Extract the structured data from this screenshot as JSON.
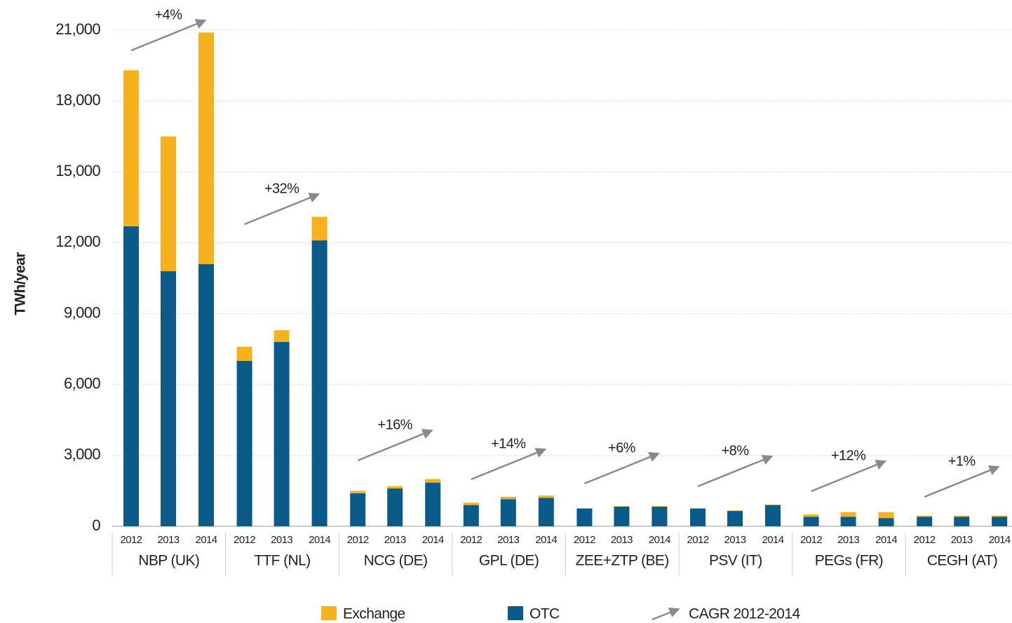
{
  "chart_data": {
    "type": "bar",
    "stacked": true,
    "y_label": "TWh/year",
    "categories": [
      "2012",
      "2013",
      "2014",
      "2012",
      "2013",
      "2014",
      "2012",
      "2013",
      "2014",
      "2012",
      "2013",
      "2014",
      "2012",
      "2013",
      "2014",
      "2012",
      "2013",
      "2014",
      "2012",
      "2013",
      "2014",
      "2012",
      "2013",
      "2014"
    ],
    "groups": [
      {
        "name": "NBP (UK)",
        "cagr": "+4%"
      },
      {
        "name": "TTF (NL)",
        "cagr": "+32%"
      },
      {
        "name": "NCG (DE)",
        "cagr": "+16%"
      },
      {
        "name": "GPL (DE)",
        "cagr": "+14%"
      },
      {
        "name": "ZEE+ZTP (BE)",
        "cagr": "+6%"
      },
      {
        "name": "PSV (IT)",
        "cagr": "+8%"
      },
      {
        "name": "PEGs (FR)",
        "cagr": "+12%"
      },
      {
        "name": "CEGH (AT)",
        "cagr": "+1%"
      }
    ],
    "series": [
      {
        "name": "Exchange",
        "color": "#f5b21c",
        "values": [
          6600,
          5700,
          9800,
          600,
          500,
          1000,
          100,
          100,
          150,
          100,
          100,
          100,
          20,
          20,
          20,
          20,
          20,
          20,
          100,
          200,
          250,
          50,
          50,
          50
        ]
      },
      {
        "name": "OTC",
        "color": "#0a5b8a",
        "values": [
          12700,
          10800,
          11100,
          7000,
          7800,
          12100,
          1400,
          1600,
          1850,
          900,
          1150,
          1200,
          750,
          830,
          830,
          750,
          650,
          900,
          400,
          400,
          350,
          400,
          400,
          400
        ]
      }
    ],
    "cagr_legend": "CAGR 2012-2014",
    "ylim": [
      0,
      21000
    ],
    "yticks": [
      0,
      {
        "value": 3000,
        "label": "3,000"
      },
      {
        "value": 6000,
        "label": "6,000"
      },
      {
        "value": 9000,
        "label": "9,000"
      },
      {
        "value": 12000,
        "label": "12,000"
      },
      {
        "value": 15000,
        "label": "15,000"
      },
      {
        "value": 18000,
        "label": "18,000"
      },
      {
        "value": 21000,
        "label": "21,000"
      }
    ],
    "grid": true
  }
}
